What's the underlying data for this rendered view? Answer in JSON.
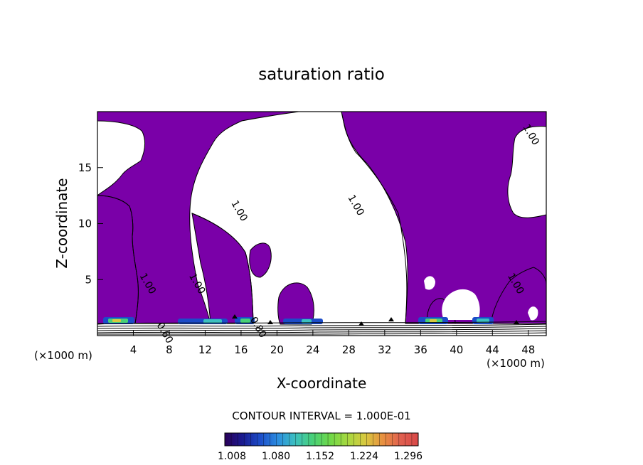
{
  "chart_data": {
    "type": "contour",
    "title": "saturation ratio",
    "xlabel": "X-coordinate",
    "ylabel": "Z-coordinate",
    "x_unit": "(×1000 m)",
    "x_unit_right": "(×1000 m)",
    "xlim": [
      0,
      50
    ],
    "ylim": [
      0,
      20
    ],
    "x_ticks": [
      4,
      8,
      12,
      16,
      20,
      24,
      28,
      32,
      36,
      40,
      44,
      48
    ],
    "y_ticks": [
      5,
      10,
      15
    ],
    "contour_interval_text": "CONTOUR INTERVAL = 1.000E-01",
    "fill_color": "#7a00a8",
    "contour_labels": [
      {
        "text": "1.00",
        "x": 15.5,
        "z": 11.0
      },
      {
        "text": "1.00",
        "x": 28.5,
        "z": 11.5
      },
      {
        "text": "1.00",
        "x": 48.0,
        "z": 17.8
      },
      {
        "text": "1.00",
        "x": 5.3,
        "z": 4.5
      },
      {
        "text": "1.00",
        "x": 10.8,
        "z": 4.5
      },
      {
        "text": "1.00",
        "x": 46.3,
        "z": 4.5
      },
      {
        "text": "0.60",
        "x": 7.2,
        "z": 0.1
      },
      {
        "text": "0.80",
        "x": 17.6,
        "z": 0.6
      }
    ],
    "colorbar": {
      "tick_labels": [
        "1.008",
        "1.080",
        "1.152",
        "1.224",
        "1.296"
      ],
      "colors": [
        "#2a0058",
        "#1a1a90",
        "#1c4cc8",
        "#2c8ce0",
        "#3cc0c0",
        "#48d078",
        "#70d848",
        "#a8d840",
        "#d8c840",
        "#e89040",
        "#e06050",
        "#d84848"
      ]
    }
  }
}
